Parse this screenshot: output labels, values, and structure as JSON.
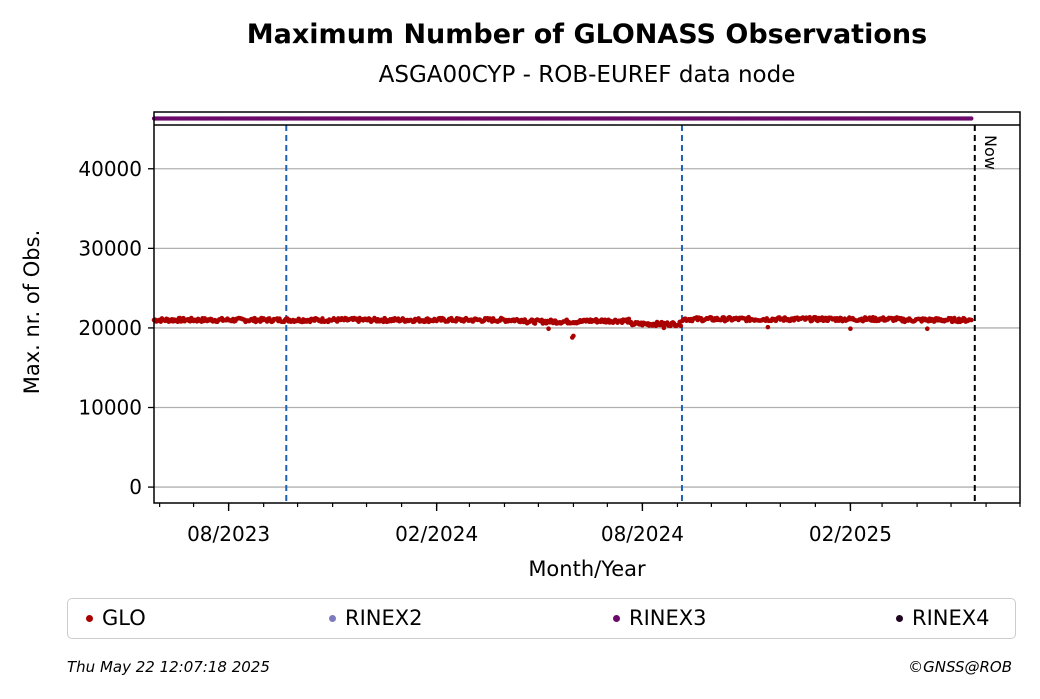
{
  "chart_data": {
    "type": "scatter",
    "title": "Maximum Number of GLONASS Observations",
    "subtitle": "ASGA00CYP - ROB-EUREF data node",
    "xlabel": "Month/Year",
    "ylabel": "Max. nr. of Obs.",
    "x_range": [
      "2023-05-27",
      "2025-07-01"
    ],
    "ylim": [
      -2000,
      45500
    ],
    "y_ticks": [
      0,
      10000,
      20000,
      30000,
      40000
    ],
    "x_ticks": [
      {
        "date": "2023-08-01",
        "label": "08/2023"
      },
      {
        "date": "2024-02-01",
        "label": "02/2024"
      },
      {
        "date": "2024-08-01",
        "label": "08/2024"
      },
      {
        "date": "2025-02-01",
        "label": "02/2025"
      }
    ],
    "grid": "horizontal",
    "vertical_markers": [
      {
        "date": "2023-09-21",
        "color": "#1f5fb4",
        "style": "dashed"
      },
      {
        "date": "2024-09-05",
        "color": "#1f5fb4",
        "style": "dashed"
      }
    ],
    "now_marker": {
      "date": "2025-05-22",
      "label": "Now"
    },
    "rinex_strip": {
      "series": "RINEX3",
      "start": "2023-05-27",
      "end": "2025-05-19"
    },
    "series": [
      {
        "name": "GLO",
        "color": "#aa0000",
        "x_start": "2023-05-27",
        "x_end": "2025-05-19",
        "segments": [
          {
            "start": "2023-05-27",
            "end": "2023-09-20",
            "level": 21000
          },
          {
            "start": "2023-09-21",
            "end": "2024-01-15",
            "level": 21000
          },
          {
            "start": "2024-01-16",
            "end": "2024-04-20",
            "level": 21000
          },
          {
            "start": "2024-04-21",
            "end": "2024-06-10",
            "level": 20800
          },
          {
            "start": "2024-06-11",
            "end": "2024-07-20",
            "level": 20900
          },
          {
            "start": "2024-07-21",
            "end": "2024-09-04",
            "level": 20500
          },
          {
            "start": "2024-09-05",
            "end": "2024-12-15",
            "level": 21100
          },
          {
            "start": "2024-12-16",
            "end": "2025-03-15",
            "level": 21100
          },
          {
            "start": "2025-03-16",
            "end": "2025-05-19",
            "level": 21000
          }
        ],
        "outliers": [
          {
            "x": "2024-05-31",
            "y": 18800
          },
          {
            "x": "2024-06-01",
            "y": 19000
          },
          {
            "x": "2024-05-10",
            "y": 19900
          },
          {
            "x": "2024-08-20",
            "y": 20000
          },
          {
            "x": "2025-02-01",
            "y": 19900
          },
          {
            "x": "2025-04-10",
            "y": 19900
          },
          {
            "x": "2024-11-20",
            "y": 20100
          }
        ]
      },
      {
        "name": "RINEX2",
        "color": "#7b7bbd"
      },
      {
        "name": "RINEX3",
        "color": "#6a0a6a"
      },
      {
        "name": "RINEX4",
        "color": "#1f0520"
      }
    ]
  },
  "legend": [
    {
      "label": "GLO",
      "color": "#aa0000"
    },
    {
      "label": "RINEX2",
      "color": "#7b7bbd"
    },
    {
      "label": "RINEX3",
      "color": "#6a0a6a"
    },
    {
      "label": "RINEX4",
      "color": "#1f0520"
    }
  ],
  "footer": {
    "timestamp": "Thu May 22 12:07:18 2025",
    "credit": "©GNSS@ROB"
  }
}
